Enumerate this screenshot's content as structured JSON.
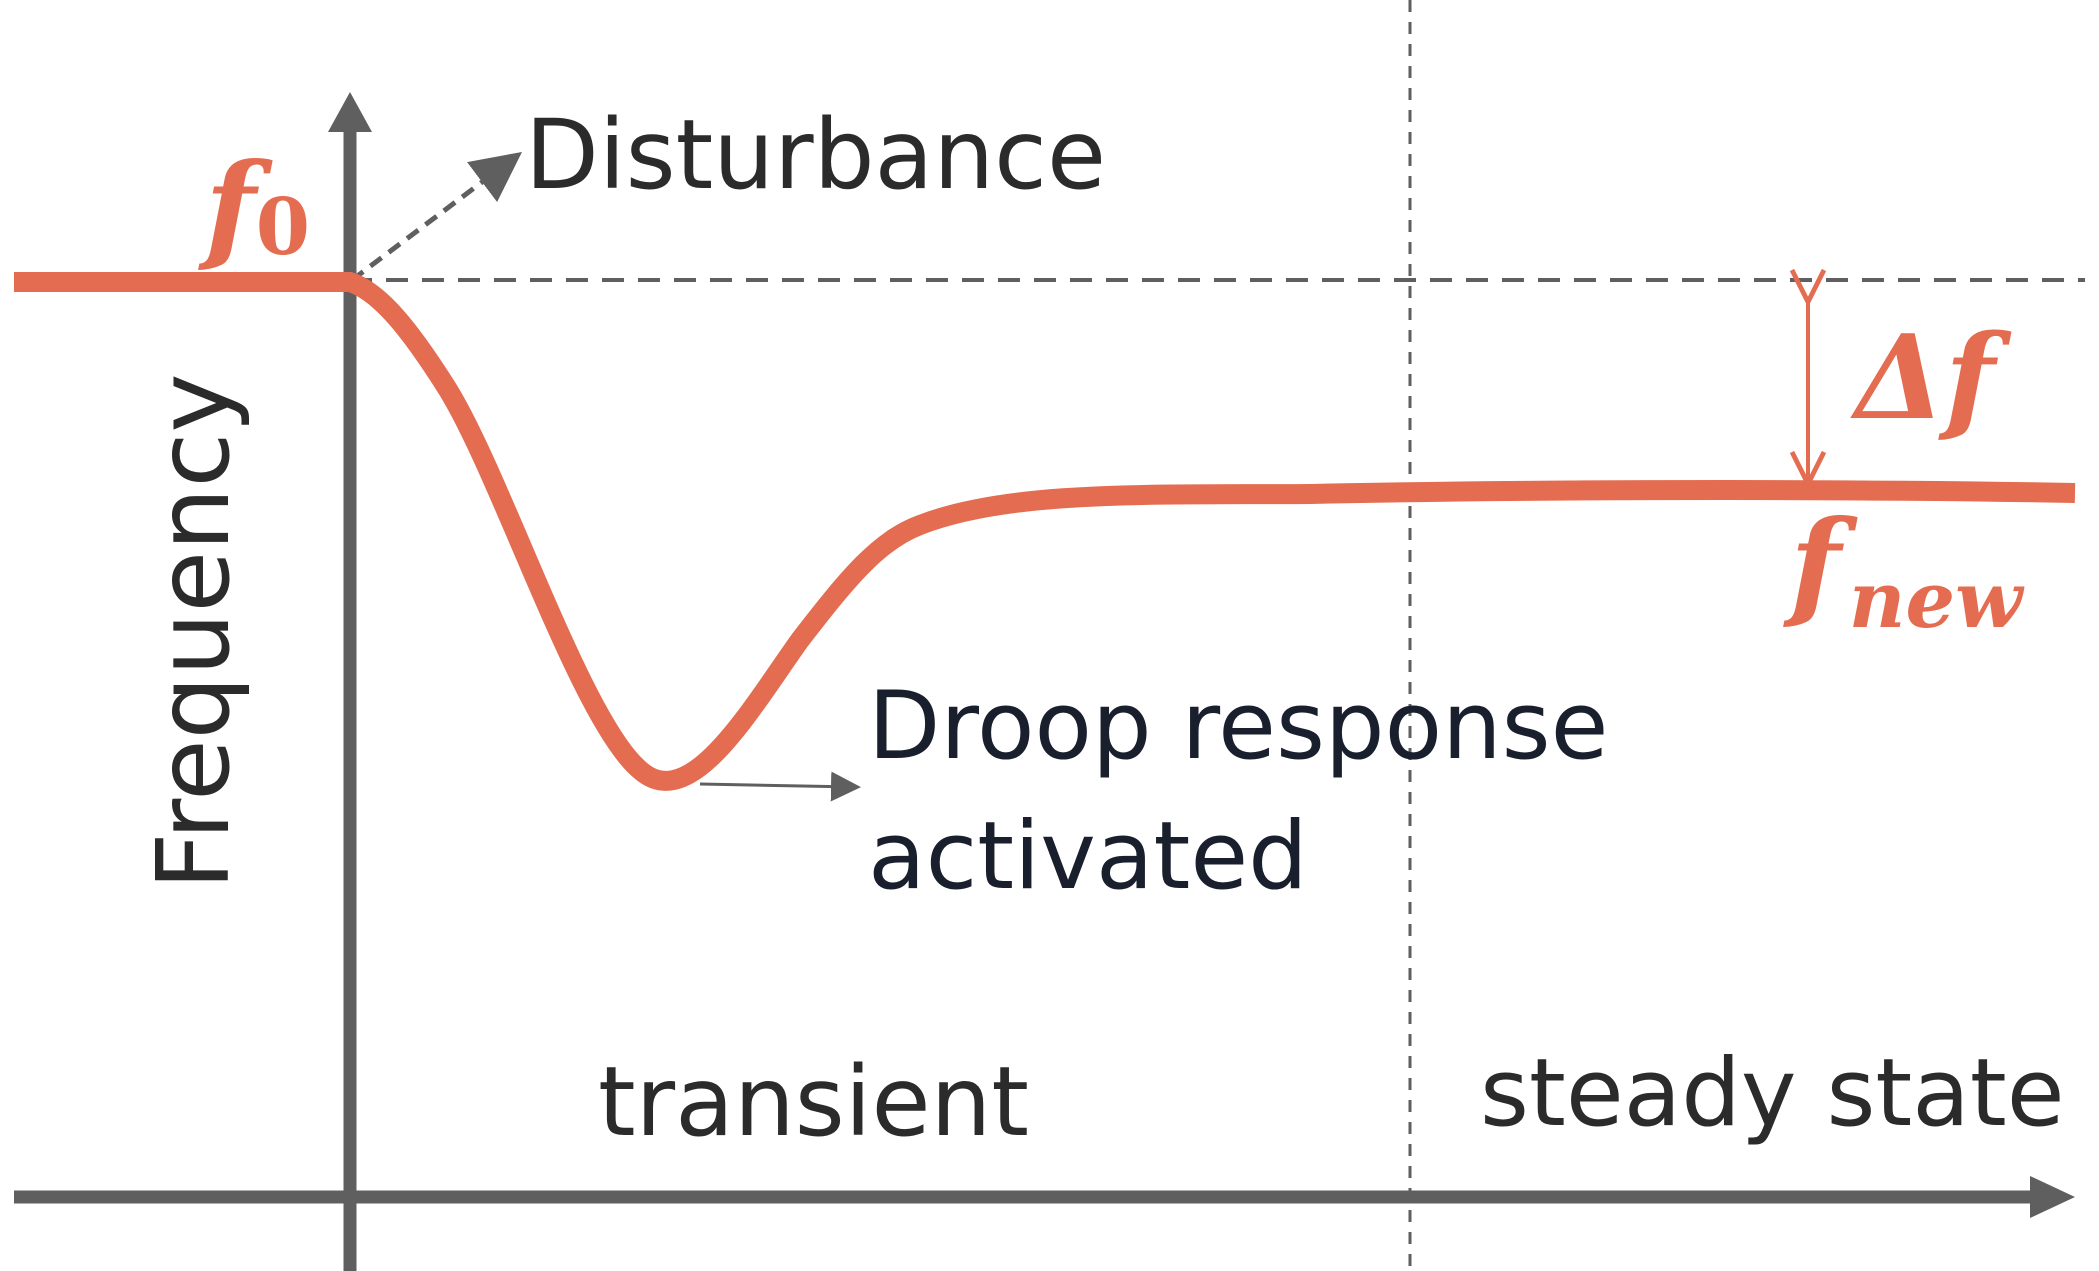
{
  "labels": {
    "y_axis": "Frequency",
    "disturbance": "Disturbance",
    "droop_line1": "Droop response",
    "droop_line2": "activated",
    "transient": "transient",
    "steady_state": "steady state",
    "f0_base": "f",
    "f0_sub": "0",
    "fnew_base": "f",
    "fnew_sub": "new",
    "delta_f": "Δf"
  },
  "colors": {
    "curve": "#E46C50",
    "axis": "#5f5f5f",
    "text": "#2b2b2b",
    "dark_text": "#1a1f2e"
  }
}
